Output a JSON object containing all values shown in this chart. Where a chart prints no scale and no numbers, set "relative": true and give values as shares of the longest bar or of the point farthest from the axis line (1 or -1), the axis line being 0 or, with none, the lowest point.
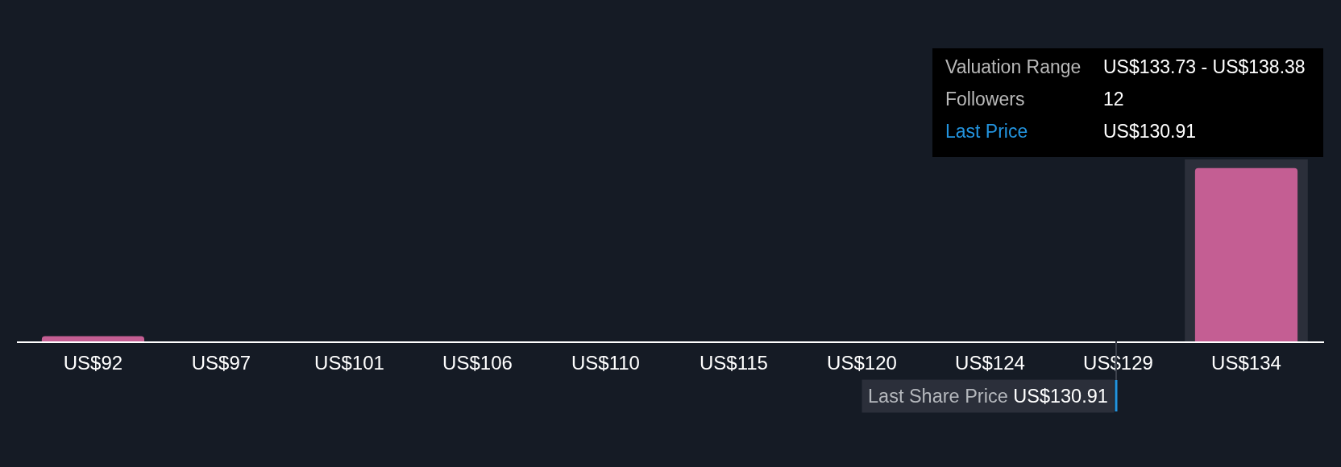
{
  "chart_data": {
    "type": "bar",
    "relative": true,
    "categories": [
      "US$92",
      "US$97",
      "US$101",
      "US$106",
      "US$110",
      "US$115",
      "US$120",
      "US$124",
      "US$129",
      "US$134"
    ],
    "values": [
      0.03,
      0,
      0,
      0,
      0,
      0,
      0,
      0,
      0,
      1
    ],
    "color": "#c45e93",
    "bands": [
      {
        "axis": "x",
        "from": "US$134",
        "to": "US$134",
        "color": "#2b2f3a"
      }
    ],
    "annotations": [
      "Valuation Range",
      "US$133.73 - US$138.38",
      "Followers",
      "12",
      "Last Price",
      "US$130.91",
      "Last Share Price US$130.91"
    ]
  }
}
